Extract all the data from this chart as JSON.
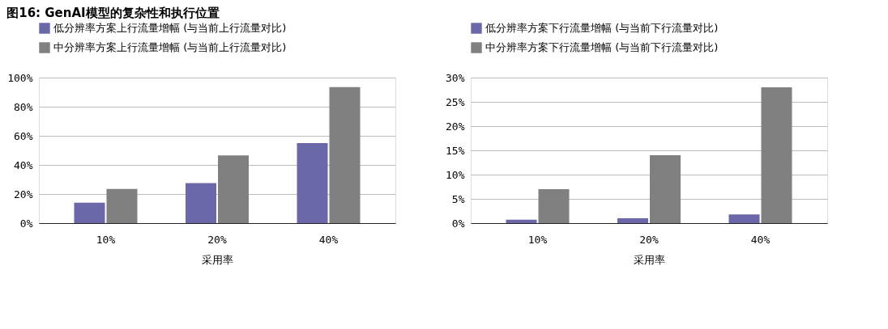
{
  "chart_data": [
    {
      "type": "bar",
      "title": "图16: GenAI模型的复杂性和执行位置",
      "xlabel": "采用率",
      "categories": [
        "10%",
        "20%",
        "40%"
      ],
      "series": [
        {
          "name": "低分辨率方案上行流量增幅 (与当前上行流量对比)",
          "color": "#6b68aa",
          "values": [
            14,
            27.5,
            55
          ]
        },
        {
          "name": "中分辨率方案上行流量增幅 (与当前上行流量对比)",
          "color": "#808080",
          "values": [
            23.5,
            46.5,
            93.5
          ]
        }
      ],
      "ylim": [
        0,
        100
      ],
      "yticks": [
        {
          "value": 0,
          "label": "0%"
        },
        {
          "value": 20,
          "label": "20%"
        },
        {
          "value": 40,
          "label": "40%"
        },
        {
          "value": 60,
          "label": "60%"
        },
        {
          "value": 80,
          "label": "80%"
        },
        {
          "value": 100,
          "label": "100%"
        }
      ],
      "grid": "y",
      "legend": "top left"
    },
    {
      "type": "bar",
      "xlabel": "采用率",
      "categories": [
        "10%",
        "20%",
        "40%"
      ],
      "series": [
        {
          "name": "低分辨率方案下行流量增幅 (与当前下行流量对比)",
          "color": "#6b68aa",
          "values": [
            0.7,
            1,
            1.8
          ]
        },
        {
          "name": "中分辨率方案下行流量增幅 (与当前下行流量对比)",
          "color": "#808080",
          "values": [
            7,
            14,
            28
          ]
        }
      ],
      "ylim": [
        0,
        30
      ],
      "yticks": [
        {
          "value": 0,
          "label": "0%"
        },
        {
          "value": 5,
          "label": "5%"
        },
        {
          "value": 10,
          "label": "10%"
        },
        {
          "value": 15,
          "label": "15%"
        },
        {
          "value": 20,
          "label": "20%"
        },
        {
          "value": 25,
          "label": "25%"
        },
        {
          "value": 30,
          "label": "30%"
        }
      ],
      "grid": "y",
      "legend": "top left"
    }
  ]
}
